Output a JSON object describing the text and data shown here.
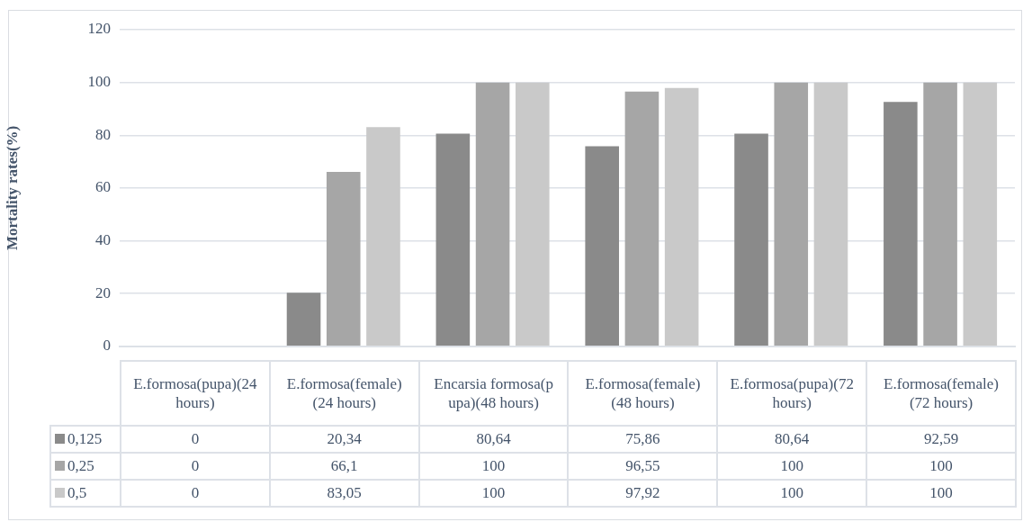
{
  "chart_data": {
    "type": "bar",
    "ylabel": "Mortality rates(%)",
    "categories": [
      "E.formosa(pupa)(24 hours)",
      "E.formosa(female)(24 hours)",
      "Encarsia formosa(pupa)(48 hours)",
      "E.formosa(female)(48 hours)",
      "E.formosa(pupa)(72 hours)",
      "E.formosa(female)(72 hours)"
    ],
    "series": [
      {
        "name": "0,125",
        "color": "#8a8a8a",
        "values": [
          0,
          20.34,
          80.64,
          75.86,
          80.64,
          92.59
        ],
        "value_labels": [
          "0",
          "20,34",
          "80,64",
          "75,86",
          "80,64",
          "92,59"
        ]
      },
      {
        "name": "0,25",
        "color": "#a6a6a6",
        "values": [
          0,
          66.1,
          100,
          96.55,
          100,
          100
        ],
        "value_labels": [
          "0",
          "66,1",
          "100",
          "96,55",
          "100",
          "100"
        ]
      },
      {
        "name": "0,5",
        "color": "#c9c9c9",
        "values": [
          0,
          83.05,
          100,
          97.92,
          100,
          100
        ],
        "value_labels": [
          "0",
          "83,05",
          "100",
          "97,92",
          "100",
          "100"
        ]
      }
    ],
    "ylim": [
      0,
      120
    ],
    "yticks": [
      0,
      20,
      40,
      60,
      80,
      100,
      120
    ],
    "grid": "y",
    "legend": "bottom"
  }
}
